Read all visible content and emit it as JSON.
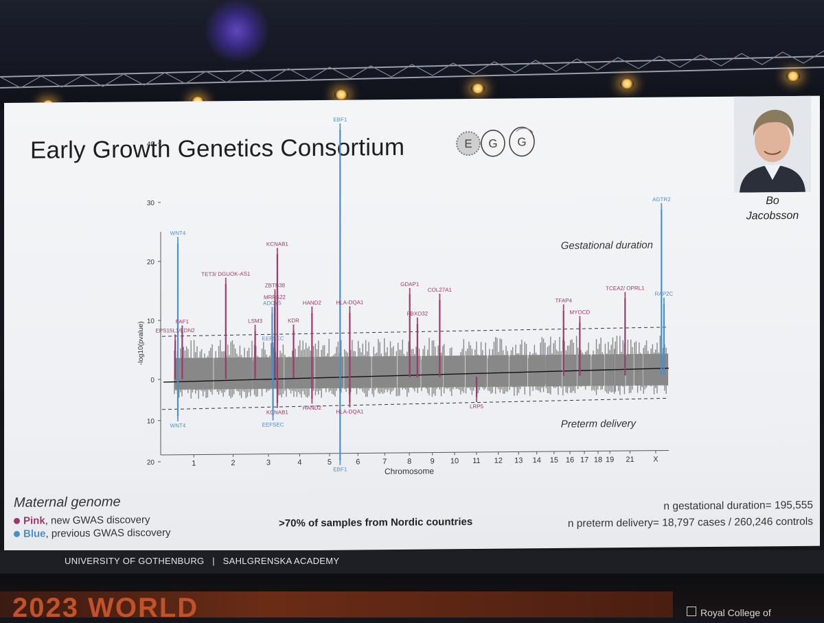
{
  "slide": {
    "title": "Early Growth Genetics Consortium",
    "logo_letters": [
      "E",
      "G",
      "G"
    ],
    "speaker": [
      "Bo",
      "Jacobsson"
    ],
    "legend": {
      "title": "Maternal genome",
      "pink_word": "Pink",
      "pink_rest": ", new GWAS discovery",
      "blue_word": "Blue",
      "blue_rest": ", previous GWAS discovery",
      "pink_color": "#9b3a69",
      "blue_color": "#4a90c8"
    },
    "nordic_note": ">70% of samples from Nordic countries",
    "n_gestational": "n gestational duration= 195,555",
    "n_preterm": "n preterm delivery= 18,797 cases / 260,246 controls"
  },
  "footer": {
    "left": "UNIVERSITY OF GOTHENBURG",
    "separator": "|",
    "right": "SAHLGRENSKA ACADEMY"
  },
  "venue": {
    "banner": "2023 WORLD",
    "rcog": "Royal College of"
  },
  "chart_data": {
    "type": "scatter",
    "subtype": "miami plot",
    "top_label": "Gestational duration",
    "bottom_label": "Preterm delivery",
    "ylabel": "-log10(pvalue)",
    "xlabel": "Chromosome",
    "top_yticks": [
      0,
      10,
      20,
      30,
      40
    ],
    "bottom_yticks": [
      10,
      20
    ],
    "chromosomes": [
      "1",
      "2",
      "3",
      "4",
      "5",
      "6",
      "7",
      "8",
      "9",
      "10",
      "11",
      "12",
      "13",
      "14",
      "15",
      "16",
      "17",
      "18",
      "19",
      "21",
      "X"
    ],
    "chrom_lengths": {
      "1": 249,
      "2": 242,
      "3": 198,
      "4": 190,
      "5": 181,
      "6": 171,
      "7": 159,
      "8": 145,
      "9": 138,
      "10": 134,
      "11": 135,
      "12": 133,
      "13": 114,
      "14": 107,
      "15": 102,
      "16": 90,
      "17": 83,
      "18": 80,
      "19": 59,
      "20": 64,
      "21": 47,
      "22": 51,
      "X": 156
    },
    "significance_threshold_top": 7.3,
    "significance_threshold_bottom": 7.3,
    "gene_colors": {
      "new": "#9b3a69",
      "previous": "#4a90c8"
    },
    "top_hits": [
      {
        "gene": "WNT4",
        "chrom": "1",
        "pos": 22,
        "value": 24,
        "status": "previous"
      },
      {
        "gene": "EPS15L1/EDN2",
        "chrom": "1",
        "pos": 5,
        "value": 7.5,
        "status": "new"
      },
      {
        "gene": "FAF1",
        "chrom": "1",
        "pos": 50,
        "value": 9,
        "status": "new"
      },
      {
        "gene": "TET3/ DGUOK-AS1",
        "chrom": "2",
        "pos": 74,
        "value": 17,
        "status": "new"
      },
      {
        "gene": "LSM3",
        "chrom": "3",
        "pos": 14,
        "value": 9,
        "status": "new"
      },
      {
        "gene": "ADCY5",
        "chrom": "3",
        "pos": 123,
        "value": 12,
        "status": "previous"
      },
      {
        "gene": "EEFSEC",
        "chrom": "3",
        "pos": 128,
        "value": 6,
        "status": "previous"
      },
      {
        "gene": "KCNAB1",
        "chrom": "3",
        "pos": 156,
        "value": 22,
        "status": "new"
      },
      {
        "gene": "ZBTB38",
        "chrom": "3",
        "pos": 141,
        "value": 15,
        "status": "new"
      },
      {
        "gene": "MRPS22",
        "chrom": "3",
        "pos": 139,
        "value": 13,
        "status": "new"
      },
      {
        "gene": "KDR",
        "chrom": "4",
        "pos": 56,
        "value": 9,
        "status": "new"
      },
      {
        "gene": "HAND2",
        "chrom": "4",
        "pos": 174,
        "value": 12,
        "status": "new"
      },
      {
        "gene": "EBF1",
        "chrom": "5",
        "pos": 158,
        "value": 43,
        "status": "previous"
      },
      {
        "gene": "HLA-DQA1",
        "chrom": "6",
        "pos": 33,
        "value": 12,
        "status": "new"
      },
      {
        "gene": "GDAP1",
        "chrom": "8",
        "pos": 75,
        "value": 15,
        "status": "new"
      },
      {
        "gene": "FBXO32",
        "chrom": "8",
        "pos": 124,
        "value": 10,
        "status": "new"
      },
      {
        "gene": "COL27A1",
        "chrom": "9",
        "pos": 116,
        "value": 14,
        "status": "new"
      },
      {
        "gene": "TFAP4",
        "chrom": "16",
        "pos": 4,
        "value": 12,
        "status": "new"
      },
      {
        "gene": "MYOCD",
        "chrom": "17",
        "pos": 12,
        "value": 10,
        "status": "new"
      },
      {
        "gene": "TCEA2/ OPRL1",
        "chrom": "20",
        "pos": 62,
        "value": 14,
        "status": "new"
      },
      {
        "gene": "AGTR2",
        "chrom": "X",
        "pos": 115,
        "value": 29,
        "status": "previous"
      },
      {
        "gene": "RAP2C",
        "chrom": "X",
        "pos": 131,
        "value": 13,
        "status": "previous"
      }
    ],
    "bottom_hits": [
      {
        "gene": "WNT4",
        "chrom": "1",
        "pos": 22,
        "value": 10,
        "status": "previous"
      },
      {
        "gene": "KCNAB1",
        "chrom": "3",
        "pos": 156,
        "value": 7,
        "status": "new"
      },
      {
        "gene": "EEFSEC",
        "chrom": "3",
        "pos": 128,
        "value": 10,
        "status": "previous"
      },
      {
        "gene": "HAND2",
        "chrom": "4",
        "pos": 174,
        "value": 6,
        "status": "new"
      },
      {
        "gene": "EBF1",
        "chrom": "5",
        "pos": 158,
        "value": 21,
        "status": "previous"
      },
      {
        "gene": "HLA-DQA1",
        "chrom": "6",
        "pos": 33,
        "value": 7,
        "status": "new"
      },
      {
        "gene": "LRP5",
        "chrom": "11",
        "pos": 68,
        "value": 6,
        "status": "new"
      }
    ]
  }
}
